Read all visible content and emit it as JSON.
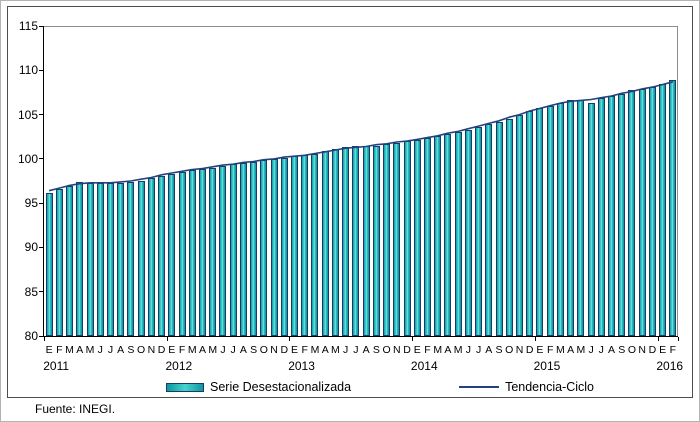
{
  "figure": {
    "fuente": "Fuente: INEGI."
  },
  "legend": {
    "bar_label": "Serie Desestacionalizada",
    "line_label": "Tendencia-Ciclo"
  },
  "colors": {
    "bar_fill_teal": "#1fb7bd",
    "bar_border_navy": "#1f3864",
    "trend_line_navy": "#23407f",
    "axis_black": "#000000",
    "frame_gray": "#8c8c8c"
  },
  "chart_data": {
    "type": "bar",
    "title": "",
    "xlabel": "",
    "ylabel": "",
    "ylim": [
      80,
      115
    ],
    "y_ticks": [
      115,
      110,
      105,
      100,
      95,
      90,
      85,
      80
    ],
    "grid": false,
    "legend_position": "bottom",
    "month_pattern": [
      "E",
      "F",
      "M",
      "A",
      "M",
      "J",
      "J",
      "A",
      "S",
      "O",
      "N",
      "D"
    ],
    "years": [
      {
        "label": "2011",
        "months": 12
      },
      {
        "label": "2012",
        "months": 12
      },
      {
        "label": "2013",
        "months": 12
      },
      {
        "label": "2014",
        "months": 12
      },
      {
        "label": "2015",
        "months": 12
      },
      {
        "label": "2016",
        "months": 2
      }
    ],
    "series": [
      {
        "name": "Serie Desestacionalizada",
        "type": "bar",
        "values": [
          96.2,
          96.6,
          96.9,
          97.4,
          97.3,
          97.3,
          97.3,
          97.3,
          97.4,
          97.5,
          97.8,
          98.1,
          98.3,
          98.5,
          98.7,
          98.8,
          99.0,
          99.2,
          99.4,
          99.5,
          99.7,
          99.9,
          100.0,
          100.1,
          100.3,
          100.4,
          100.5,
          100.9,
          101.1,
          101.3,
          101.4,
          101.4,
          101.5,
          101.7,
          101.8,
          102.0,
          102.1,
          102.3,
          102.6,
          102.8,
          103.0,
          103.3,
          103.6,
          103.9,
          104.2,
          104.5,
          104.9,
          105.4,
          105.7,
          106.0,
          106.3,
          106.6,
          106.6,
          106.3,
          106.9,
          107.1,
          107.3,
          107.8,
          107.9,
          108.1,
          108.5,
          108.9
        ]
      },
      {
        "name": "Tendencia-Ciclo",
        "type": "line",
        "values": [
          96.4,
          96.7,
          97.0,
          97.2,
          97.3,
          97.3,
          97.3,
          97.4,
          97.5,
          97.7,
          97.9,
          98.2,
          98.4,
          98.6,
          98.8,
          98.9,
          99.1,
          99.3,
          99.4,
          99.6,
          99.7,
          99.9,
          100.0,
          100.2,
          100.3,
          100.4,
          100.6,
          100.8,
          101.0,
          101.2,
          101.3,
          101.4,
          101.6,
          101.7,
          101.9,
          102.0,
          102.2,
          102.4,
          102.6,
          102.9,
          103.1,
          103.4,
          103.7,
          104.0,
          104.3,
          104.7,
          105.0,
          105.4,
          105.7,
          106.0,
          106.3,
          106.5,
          106.6,
          106.7,
          106.9,
          107.1,
          107.4,
          107.6,
          107.9,
          108.1,
          108.4,
          108.7
        ]
      }
    ]
  }
}
